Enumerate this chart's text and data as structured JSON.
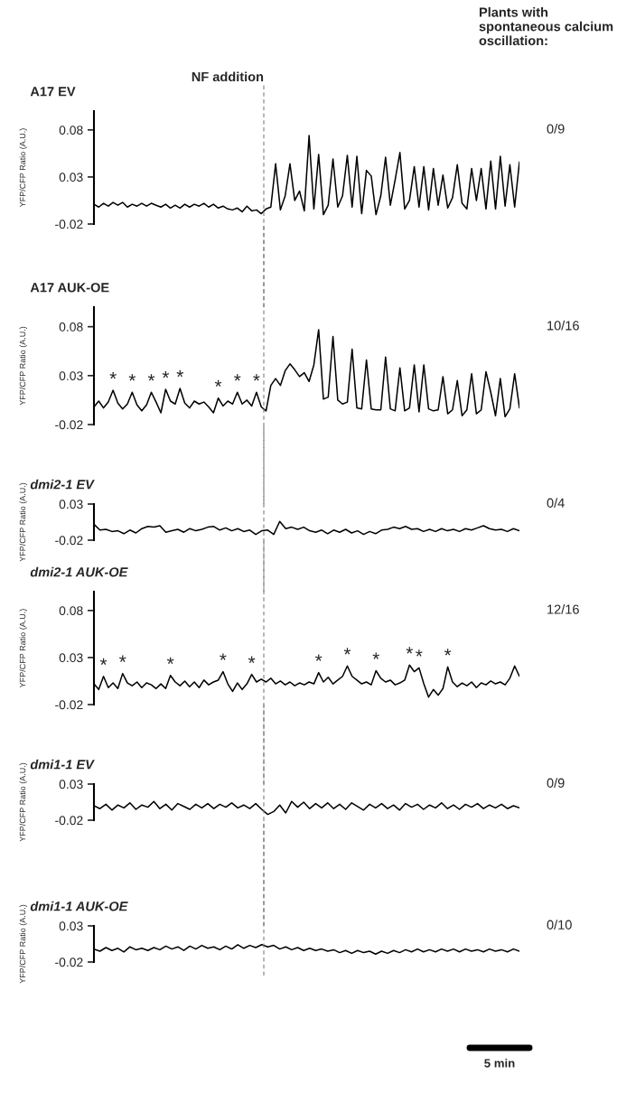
{
  "chart_data": [
    {
      "type": "line",
      "title": "A17 EV",
      "ylabel": "YFP/CFP Ratio (A.U.)",
      "ylim": [
        -0.02,
        0.1
      ],
      "yticks": [
        {
          "value": 0.08,
          "label": "0.08"
        },
        {
          "value": 0.03,
          "label": "0.03"
        },
        {
          "value": -0.02,
          "label": "-0.02"
        }
      ],
      "tick_labels": "y",
      "categories": [
        null,
        null,
        null,
        null,
        null,
        null,
        null,
        null,
        null,
        null,
        null,
        null,
        null,
        null,
        null,
        null,
        null,
        null,
        null,
        null,
        null,
        null,
        null,
        null,
        null,
        null,
        null,
        null,
        null,
        null,
        null,
        null,
        null,
        null,
        null,
        null,
        null,
        null,
        null,
        null,
        null,
        null,
        null,
        null,
        null,
        null,
        null,
        null,
        null,
        null,
        null,
        null,
        null,
        null,
        null,
        null,
        null,
        null,
        null,
        null,
        null,
        null,
        null,
        null,
        null,
        null,
        null,
        null,
        null,
        null,
        null,
        null,
        null,
        null,
        null,
        null,
        null,
        null,
        null,
        null,
        null,
        null,
        null,
        null,
        null,
        null,
        null,
        null,
        null,
        null
      ],
      "annotations": [
        "NF addition",
        "Plants with spontaneous calcium oscillation:",
        "0/9"
      ],
      "series": [
        {
          "color": "#000000",
          "values": [
            0.001,
            -0.002,
            0.002,
            -0.001,
            0.003,
            0.0,
            0.003,
            -0.002,
            0.001,
            -0.001,
            0.002,
            -0.001,
            0.002,
            0.0,
            -0.002,
            0.001,
            -0.003,
            0.0,
            -0.003,
            0.001,
            -0.002,
            0.001,
            -0.001,
            0.002,
            -0.002,
            0.001,
            -0.003,
            -0.001,
            -0.004,
            -0.005,
            -0.003,
            -0.007,
            -0.001,
            -0.006,
            -0.005,
            -0.009,
            -0.004,
            -0.002,
            0.044,
            -0.005,
            0.01,
            0.044,
            0.005,
            0.015,
            -0.006,
            0.074,
            -0.004,
            0.054,
            -0.01,
            0.0,
            0.049,
            -0.002,
            0.01,
            0.053,
            -0.002,
            0.052,
            -0.009,
            0.037,
            0.031,
            -0.01,
            0.01,
            0.051,
            0.0,
            0.027,
            0.056,
            -0.004,
            0.005,
            0.041,
            -0.002,
            0.041,
            -0.005,
            0.039,
            0.0,
            0.032,
            -0.003,
            0.008,
            0.043,
            0.002,
            -0.004,
            0.039,
            0.005,
            0.039,
            -0.004,
            0.047,
            -0.004,
            0.052,
            -0.001,
            0.043,
            -0.002,
            0.046
          ]
        }
      ]
    },
    {
      "type": "line",
      "title": "A17 AUK-OE",
      "ylabel": "YFP/CFP Ratio (A.U.)",
      "ylim": [
        -0.02,
        0.1
      ],
      "yticks": [
        {
          "value": 0.08,
          "label": "0.08"
        },
        {
          "value": 0.03,
          "label": "0.03"
        },
        {
          "value": -0.02,
          "label": "-0.02"
        }
      ],
      "tick_labels": "y",
      "categories": [
        null,
        null,
        null,
        null,
        null,
        null,
        null,
        null,
        null,
        null,
        null,
        null,
        null,
        null,
        null,
        null,
        null,
        null,
        null,
        null,
        null,
        null,
        null,
        null,
        null,
        null,
        null,
        null,
        null,
        null,
        null,
        null,
        null,
        null,
        null,
        null,
        null,
        null,
        null,
        null,
        null,
        null,
        null,
        null,
        null,
        null,
        null,
        null,
        null,
        null,
        null,
        null,
        null,
        null,
        null,
        null,
        null,
        null,
        null,
        null,
        null,
        null,
        null,
        null,
        null,
        null,
        null,
        null,
        null,
        null,
        null,
        null,
        null,
        null,
        null,
        null,
        null,
        null,
        null,
        null,
        null,
        null,
        null,
        null,
        null,
        null,
        null,
        null,
        null,
        null
      ],
      "annotations": [
        "10/16"
      ],
      "series": [
        {
          "color": "#000000",
          "values": [
            -0.002,
            0.004,
            -0.003,
            0.003,
            0.015,
            0.002,
            -0.004,
            0.001,
            0.013,
            0.0,
            -0.006,
            0.0,
            0.013,
            0.003,
            -0.008,
            0.016,
            0.004,
            0.001,
            0.017,
            0.002,
            -0.003,
            0.004,
            0.001,
            0.003,
            -0.002,
            -0.008,
            0.007,
            -0.001,
            0.004,
            0.001,
            0.013,
            0.001,
            0.005,
            -0.001,
            0.013,
            -0.002,
            -0.006,
            0.02,
            0.027,
            0.02,
            0.035,
            0.042,
            0.036,
            0.029,
            0.033,
            0.024,
            0.041,
            0.077,
            0.006,
            0.008,
            0.07,
            0.005,
            0.001,
            0.003,
            0.057,
            -0.003,
            -0.004,
            0.046,
            -0.004,
            -0.005,
            -0.005,
            0.049,
            -0.004,
            -0.006,
            0.038,
            -0.006,
            -0.003,
            0.041,
            -0.007,
            0.041,
            -0.004,
            -0.006,
            -0.005,
            0.029,
            -0.009,
            -0.005,
            0.025,
            -0.011,
            -0.005,
            0.032,
            -0.009,
            -0.005,
            0.034,
            0.013,
            -0.011,
            0.027,
            -0.012,
            -0.004,
            0.032,
            -0.003
          ],
          "value_labels": [
            null,
            null,
            null,
            null,
            "*",
            null,
            null,
            null,
            "*",
            null,
            null,
            null,
            "*",
            null,
            null,
            "*",
            null,
            null,
            "*",
            null,
            null,
            null,
            null,
            null,
            null,
            null,
            "*",
            null,
            null,
            null,
            "*",
            null,
            null,
            null,
            "*",
            null,
            null,
            null,
            null,
            null,
            null,
            null,
            null,
            null,
            null,
            null,
            null,
            null,
            null,
            null,
            null,
            null,
            null,
            null,
            null,
            null,
            null,
            null,
            null,
            null,
            null,
            null,
            null,
            null,
            null,
            null,
            null,
            null,
            null,
            null,
            null,
            null,
            null,
            null,
            null,
            null,
            null,
            null,
            null,
            null,
            null,
            null,
            null,
            null,
            null,
            null,
            null,
            null,
            null,
            null
          ]
        }
      ]
    },
    {
      "type": "line",
      "title": "dmi2-1 EV",
      "ylabel": "YFP/CFP Ratio (A.U.)",
      "ylim": [
        -0.02,
        0.03
      ],
      "yticks": [
        {
          "value": 0.03,
          "label": "0.03"
        },
        {
          "value": -0.02,
          "label": "-0.02"
        }
      ],
      "tick_labels": "y",
      "categories": [
        null,
        null,
        null,
        null,
        null,
        null,
        null,
        null,
        null,
        null,
        null,
        null,
        null,
        null,
        null,
        null,
        null,
        null,
        null,
        null,
        null,
        null,
        null,
        null,
        null,
        null,
        null,
        null,
        null,
        null,
        null,
        null,
        null,
        null,
        null,
        null,
        null,
        null,
        null,
        null,
        null,
        null,
        null,
        null,
        null,
        null,
        null,
        null,
        null,
        null,
        null,
        null,
        null,
        null,
        null,
        null,
        null,
        null,
        null,
        null,
        null,
        null,
        null,
        null,
        null,
        null,
        null,
        null,
        null,
        null,
        null,
        null
      ],
      "annotations": [
        "0/4"
      ],
      "series": [
        {
          "color": "#000000",
          "values": [
            0.002,
            -0.006,
            -0.005,
            -0.008,
            -0.007,
            -0.011,
            -0.006,
            -0.01,
            -0.004,
            -0.001,
            -0.002,
            0.0,
            -0.009,
            -0.007,
            -0.005,
            -0.009,
            -0.004,
            -0.007,
            -0.005,
            -0.002,
            -0.001,
            -0.006,
            -0.003,
            -0.007,
            -0.004,
            -0.008,
            -0.006,
            -0.012,
            -0.007,
            -0.006,
            -0.012,
            0.006,
            -0.004,
            -0.002,
            -0.005,
            -0.002,
            -0.007,
            -0.009,
            -0.006,
            -0.011,
            -0.006,
            -0.009,
            -0.005,
            -0.01,
            -0.007,
            -0.012,
            -0.008,
            -0.011,
            -0.006,
            -0.005,
            -0.002,
            -0.004,
            -0.001,
            -0.005,
            -0.004,
            -0.008,
            -0.005,
            -0.008,
            -0.004,
            -0.007,
            -0.005,
            -0.008,
            -0.004,
            -0.006,
            -0.003,
            0.0,
            -0.004,
            -0.006,
            -0.005,
            -0.008,
            -0.004,
            -0.007
          ]
        }
      ]
    },
    {
      "type": "line",
      "title": "dmi2-1 AUK-OE",
      "ylabel": "YFP/CFP Ratio (A.U.)",
      "ylim": [
        -0.02,
        0.1
      ],
      "yticks": [
        {
          "value": 0.08,
          "label": "0.08"
        },
        {
          "value": 0.03,
          "label": "0.03"
        },
        {
          "value": -0.02,
          "label": "-0.02"
        }
      ],
      "tick_labels": "y",
      "categories": [
        null,
        null,
        null,
        null,
        null,
        null,
        null,
        null,
        null,
        null,
        null,
        null,
        null,
        null,
        null,
        null,
        null,
        null,
        null,
        null,
        null,
        null,
        null,
        null,
        null,
        null,
        null,
        null,
        null,
        null,
        null,
        null,
        null,
        null,
        null,
        null,
        null,
        null,
        null,
        null,
        null,
        null,
        null,
        null,
        null,
        null,
        null,
        null,
        null,
        null,
        null,
        null,
        null,
        null,
        null,
        null,
        null,
        null,
        null,
        null,
        null,
        null,
        null,
        null,
        null,
        null,
        null,
        null,
        null,
        null,
        null,
        null,
        null,
        null,
        null,
        null,
        null,
        null,
        null,
        null,
        null,
        null,
        null,
        null,
        null,
        null,
        null,
        null,
        null,
        null
      ],
      "annotations": [
        "12/16"
      ],
      "series": [
        {
          "color": "#000000",
          "values": [
            0.002,
            -0.004,
            0.01,
            -0.002,
            0.003,
            -0.003,
            0.013,
            0.003,
            0.0,
            0.004,
            -0.002,
            0.003,
            0.001,
            -0.003,
            0.002,
            -0.003,
            0.011,
            0.004,
            0.0,
            0.005,
            -0.001,
            0.004,
            -0.002,
            0.006,
            0.001,
            0.004,
            0.006,
            0.015,
            0.002,
            -0.006,
            0.003,
            -0.004,
            0.002,
            0.012,
            0.004,
            0.007,
            0.004,
            0.008,
            0.002,
            0.005,
            0.001,
            0.004,
            0.0,
            0.003,
            0.001,
            0.004,
            0.002,
            0.014,
            0.004,
            0.009,
            0.002,
            0.006,
            0.01,
            0.021,
            0.01,
            0.006,
            0.002,
            0.004,
            0.001,
            0.016,
            0.008,
            0.004,
            0.006,
            0.001,
            0.003,
            0.006,
            0.022,
            0.015,
            0.019,
            0.002,
            -0.012,
            -0.004,
            -0.01,
            -0.003,
            0.02,
            0.004,
            -0.001,
            0.003,
            0.0,
            0.004,
            -0.002,
            0.003,
            0.001,
            0.005,
            0.002,
            0.004,
            0.001,
            0.008,
            0.021,
            0.01
          ],
          "value_labels": [
            null,
            null,
            "*",
            null,
            null,
            null,
            "*",
            null,
            null,
            null,
            null,
            null,
            null,
            null,
            null,
            null,
            "*",
            null,
            null,
            null,
            null,
            null,
            null,
            null,
            null,
            null,
            null,
            "*",
            null,
            null,
            null,
            null,
            null,
            "*",
            null,
            null,
            null,
            null,
            null,
            null,
            null,
            null,
            null,
            null,
            null,
            null,
            null,
            "*",
            null,
            null,
            null,
            null,
            null,
            "*",
            null,
            null,
            null,
            null,
            null,
            "*",
            null,
            null,
            null,
            null,
            null,
            null,
            "*",
            null,
            "*",
            null,
            null,
            null,
            null,
            null,
            "*",
            null,
            null,
            null,
            null,
            null,
            null,
            null,
            null,
            null,
            null,
            null,
            null,
            null,
            null,
            null
          ]
        }
      ]
    },
    {
      "type": "line",
      "title": "dmi1-1 EV",
      "ylabel": "YFP/CFP Ratio (A.U.)",
      "ylim": [
        -0.02,
        0.03
      ],
      "yticks": [
        {
          "value": 0.03,
          "label": "0.03"
        },
        {
          "value": -0.02,
          "label": "-0.02"
        }
      ],
      "tick_labels": "y",
      "categories": [
        null,
        null,
        null,
        null,
        null,
        null,
        null,
        null,
        null,
        null,
        null,
        null,
        null,
        null,
        null,
        null,
        null,
        null,
        null,
        null,
        null,
        null,
        null,
        null,
        null,
        null,
        null,
        null,
        null,
        null,
        null,
        null,
        null,
        null,
        null,
        null,
        null,
        null,
        null,
        null,
        null,
        null,
        null,
        null,
        null,
        null,
        null,
        null,
        null,
        null,
        null,
        null,
        null,
        null,
        null,
        null,
        null,
        null,
        null,
        null,
        null,
        null,
        null,
        null,
        null,
        null,
        null,
        null,
        null,
        null,
        null,
        null
      ],
      "annotations": [
        "0/9"
      ],
      "series": [
        {
          "color": "#000000",
          "values": [
            0.0,
            -0.004,
            0.002,
            -0.006,
            0.001,
            -0.003,
            0.004,
            -0.005,
            0.001,
            -0.002,
            0.006,
            -0.004,
            0.002,
            -0.006,
            0.003,
            -0.001,
            -0.005,
            0.002,
            -0.003,
            0.003,
            -0.004,
            0.002,
            -0.002,
            0.004,
            -0.003,
            0.001,
            -0.004,
            0.003,
            -0.005,
            -0.012,
            -0.008,
            0.001,
            -0.01,
            0.006,
            -0.002,
            0.005,
            -0.004,
            0.003,
            -0.003,
            0.004,
            -0.004,
            0.002,
            -0.005,
            0.004,
            -0.001,
            -0.006,
            0.002,
            -0.003,
            0.003,
            -0.004,
            0.001,
            -0.006,
            0.003,
            -0.002,
            0.002,
            -0.005,
            0.001,
            -0.003,
            0.004,
            -0.004,
            0.001,
            -0.005,
            0.002,
            -0.002,
            0.003,
            -0.004,
            0.001,
            -0.003,
            0.002,
            -0.004,
            0.0,
            -0.003
          ]
        }
      ]
    },
    {
      "type": "line",
      "title": "dmi1-1 AUK-OE",
      "ylabel": "YFP/CFP Ratio (A.U.)",
      "ylim": [
        -0.02,
        0.03
      ],
      "yticks": [
        {
          "value": 0.03,
          "label": "0.03"
        },
        {
          "value": -0.02,
          "label": "-0.02"
        }
      ],
      "tick_labels": "y",
      "categories": [
        null,
        null,
        null,
        null,
        null,
        null,
        null,
        null,
        null,
        null,
        null,
        null,
        null,
        null,
        null,
        null,
        null,
        null,
        null,
        null,
        null,
        null,
        null,
        null,
        null,
        null,
        null,
        null,
        null,
        null,
        null,
        null,
        null,
        null,
        null,
        null,
        null,
        null,
        null,
        null,
        null,
        null,
        null,
        null,
        null,
        null,
        null,
        null,
        null,
        null,
        null,
        null,
        null,
        null,
        null,
        null,
        null,
        null,
        null,
        null,
        null,
        null,
        null,
        null,
        null,
        null,
        null,
        null,
        null,
        null,
        null,
        null
      ],
      "annotations": [
        "0/10",
        "5 min"
      ],
      "series": [
        {
          "color": "#000000",
          "values": [
            -0.002,
            -0.005,
            0.0,
            -0.004,
            -0.001,
            -0.006,
            0.001,
            -0.003,
            -0.001,
            -0.004,
            0.0,
            -0.003,
            0.002,
            -0.002,
            0.001,
            -0.004,
            0.002,
            -0.002,
            0.003,
            -0.001,
            0.001,
            -0.003,
            0.002,
            -0.002,
            0.004,
            -0.001,
            0.003,
            0.0,
            0.004,
            0.001,
            0.003,
            -0.002,
            0.001,
            -0.003,
            0.0,
            -0.004,
            -0.001,
            -0.004,
            -0.002,
            -0.005,
            -0.003,
            -0.007,
            -0.004,
            -0.008,
            -0.004,
            -0.007,
            -0.005,
            -0.009,
            -0.005,
            -0.008,
            -0.004,
            -0.007,
            -0.003,
            -0.006,
            -0.002,
            -0.006,
            -0.003,
            -0.006,
            -0.002,
            -0.005,
            -0.002,
            -0.006,
            -0.002,
            -0.005,
            -0.003,
            -0.006,
            -0.002,
            -0.005,
            -0.003,
            -0.006,
            -0.002,
            -0.005
          ]
        }
      ]
    }
  ]
}
